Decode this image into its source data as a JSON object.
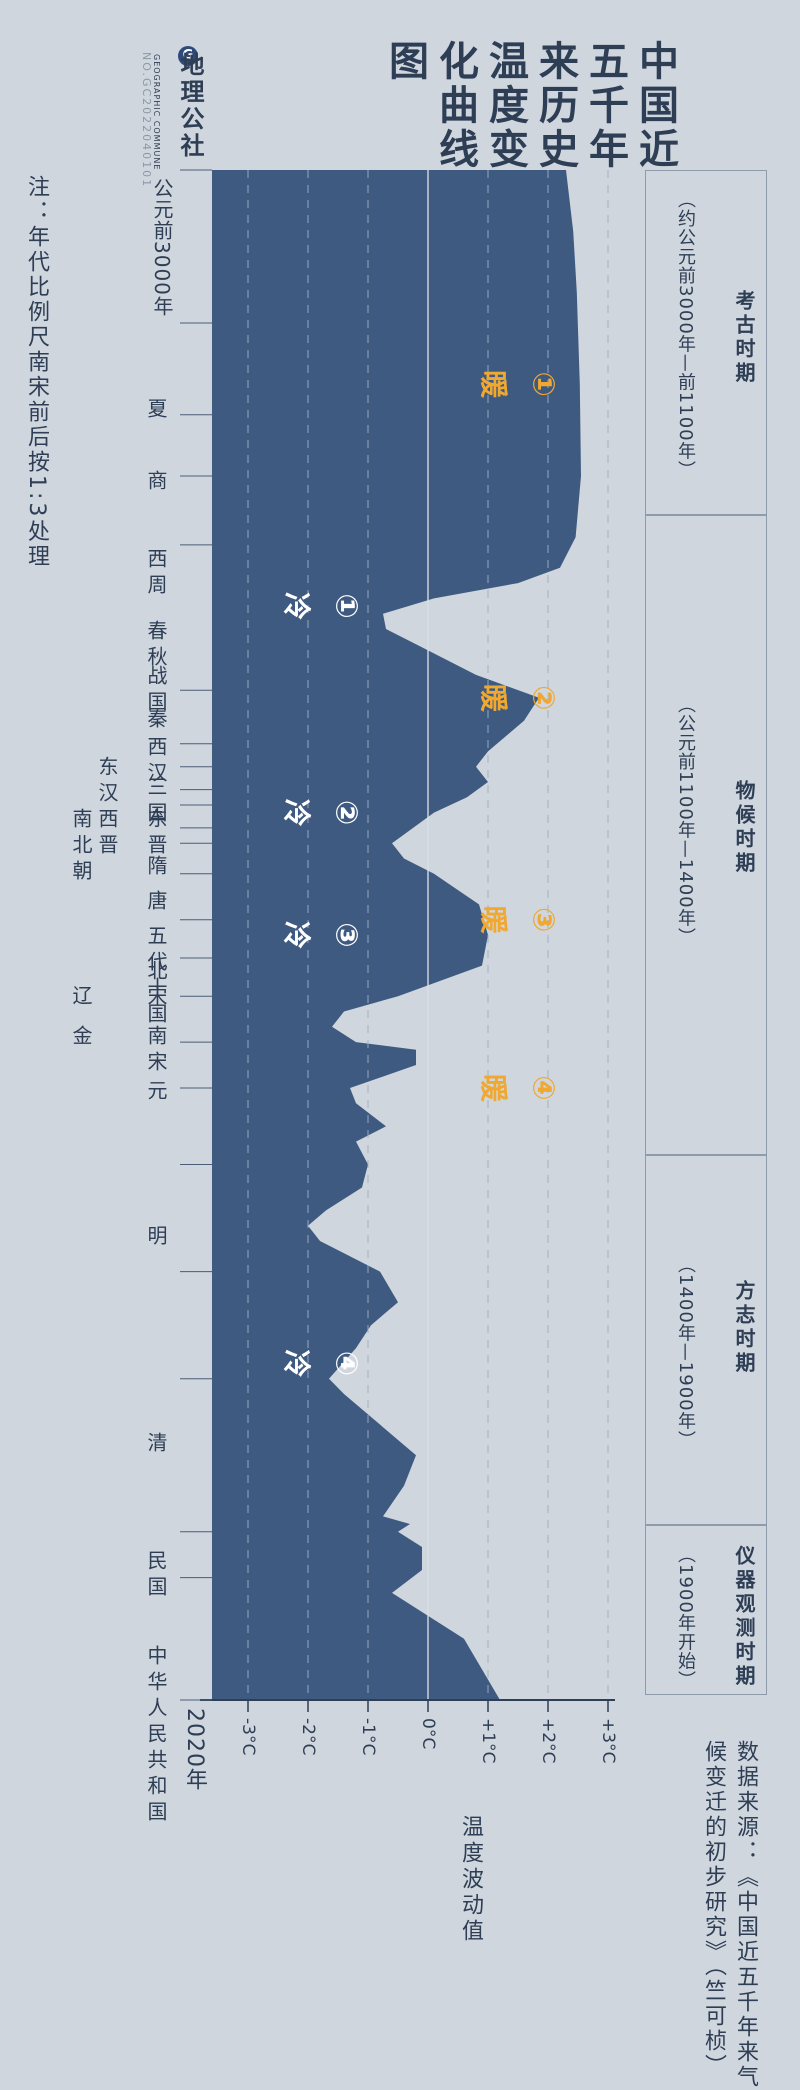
{
  "title": "中国近五千年来历史温度变化曲线图",
  "title_lines": [
    "中国近",
    "五千年",
    "来历史",
    "温度变",
    "化曲线",
    "图"
  ],
  "brand": {
    "name_cn": "地理公社",
    "name_en": "GEOGRAPHIC COMMUNE",
    "issue": "NO.GC2022040101"
  },
  "note": "注：年代比例尺南宋前后按1:3处理",
  "source": [
    "数据来源：《中国近五千年来气",
    "候变迁的初步研究》（竺可桢）"
  ],
  "axis_title": "温度波动值",
  "colors": {
    "background": "#cfd6de",
    "curve_fill": "#3e5a80",
    "warm_label": "#f0a830",
    "cold_label": "#ffffff",
    "grid": "#9fb0c2",
    "text": "#2e3e55"
  },
  "chart_data": {
    "type": "area",
    "orientation": "rotated: time runs top-to-bottom, temperature runs left-to-right",
    "xlabel": "温度波动值",
    "xlim": [
      -3,
      3
    ],
    "x_ticks": [
      "-3°C",
      "-2°C",
      "-1°C",
      "0°C",
      "+1°C",
      "+2°C",
      "+3°C"
    ],
    "time_labels": {
      "start": "公元前3000年",
      "end": "2020年"
    },
    "grid": true,
    "series": [
      {
        "points": [
          [
            0.0,
            2.3
          ],
          [
            0.04,
            2.42
          ],
          [
            0.08,
            2.48
          ],
          [
            0.14,
            2.53
          ],
          [
            0.2,
            2.55
          ],
          [
            0.24,
            2.46
          ],
          [
            0.26,
            2.2
          ],
          [
            0.27,
            1.5
          ],
          [
            0.28,
            0.1
          ],
          [
            0.29,
            -0.75
          ],
          [
            0.3,
            -0.7
          ],
          [
            0.31,
            -0.2
          ],
          [
            0.33,
            0.8
          ],
          [
            0.345,
            1.85
          ],
          [
            0.36,
            1.6
          ],
          [
            0.38,
            1.0
          ],
          [
            0.39,
            0.8
          ],
          [
            0.4,
            1.0
          ],
          [
            0.41,
            0.65
          ],
          [
            0.42,
            0.1
          ],
          [
            0.44,
            -0.6
          ],
          [
            0.45,
            -0.4
          ],
          [
            0.46,
            0.1
          ],
          [
            0.48,
            0.85
          ],
          [
            0.5,
            1.0
          ],
          [
            0.52,
            0.9
          ],
          [
            0.54,
            -0.5
          ],
          [
            0.55,
            -1.4
          ],
          [
            0.56,
            -1.6
          ],
          [
            0.57,
            -1.2
          ],
          [
            0.575,
            -0.2
          ],
          [
            0.585,
            -0.2
          ],
          [
            0.6,
            -1.3
          ],
          [
            0.61,
            -1.2
          ],
          [
            0.625,
            -0.7
          ],
          [
            0.635,
            -1.2
          ],
          [
            0.65,
            -1.0
          ],
          [
            0.665,
            -1.1
          ],
          [
            0.68,
            -1.7
          ],
          [
            0.69,
            -2.0
          ],
          [
            0.7,
            -1.8
          ],
          [
            0.72,
            -0.8
          ],
          [
            0.74,
            -0.5
          ],
          [
            0.755,
            -0.95
          ],
          [
            0.77,
            -1.2
          ],
          [
            0.79,
            -1.65
          ],
          [
            0.8,
            -1.4
          ],
          [
            0.84,
            -0.2
          ],
          [
            0.86,
            -0.4
          ],
          [
            0.88,
            -0.75
          ],
          [
            0.885,
            -0.3
          ],
          [
            0.89,
            -0.5
          ],
          [
            0.9,
            -0.1
          ],
          [
            0.915,
            -0.1
          ],
          [
            0.93,
            -0.6
          ],
          [
            0.96,
            0.6
          ],
          [
            1.0,
            1.2
          ]
        ]
      }
    ]
  },
  "warm_labels": [
    {
      "num": "①",
      "text": "暖"
    },
    {
      "num": "②",
      "text": "暖"
    },
    {
      "num": "③",
      "text": "暖"
    },
    {
      "num": "④",
      "text": "暖"
    }
  ],
  "cold_labels": [
    {
      "num": "①",
      "text": "冷"
    },
    {
      "num": "②",
      "text": "冷"
    },
    {
      "num": "③",
      "text": "冷"
    },
    {
      "num": "④",
      "text": "冷"
    }
  ],
  "dynasties": [
    "夏",
    "商",
    "西周",
    "春秋",
    "战国",
    "秦",
    "西汉",
    "东汉",
    "三国",
    "西晋",
    "东晋",
    "南北朝",
    "隋",
    "唐",
    "五代十国",
    "北宋",
    "辽",
    "南宋",
    "金",
    "元",
    "明",
    "清",
    "民国",
    "中华人民共和国"
  ],
  "periods": [
    {
      "name": "考古时期",
      "range": "（约公元前3000年—前1100年）"
    },
    {
      "name": "物候时期",
      "range": "（公元前1100年—1400年）"
    },
    {
      "name": "方志时期",
      "range": "（1400年—1900年）"
    },
    {
      "name": "仪器观测时期",
      "range": "（1900年开始）"
    }
  ]
}
